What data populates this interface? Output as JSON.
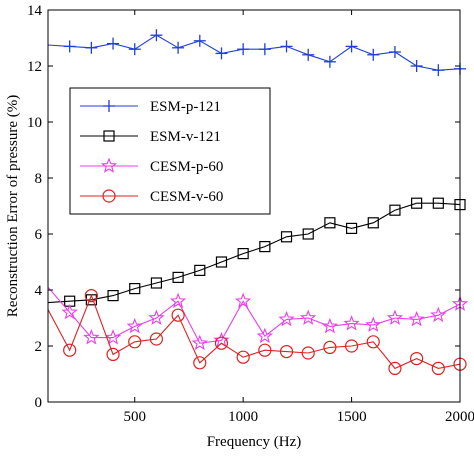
{
  "chart_data": {
    "type": "line",
    "xlabel": "Frequency (Hz)",
    "ylabel": "Reconstruction Error of pressure (%)",
    "xlim": [
      100,
      2000
    ],
    "ylim": [
      0,
      14
    ],
    "xticks": [
      500,
      1000,
      1500,
      2000
    ],
    "yticks": [
      0,
      2,
      4,
      6,
      8,
      10,
      12,
      14
    ],
    "grid": false,
    "legend_position": "middle-left",
    "x": [
      100,
      200,
      300,
      400,
      500,
      600,
      700,
      800,
      900,
      1000,
      1100,
      1200,
      1300,
      1400,
      1500,
      1600,
      1700,
      1800,
      1900,
      2000
    ],
    "series": [
      {
        "name": "ESM-p-121",
        "color": "#1f3fd6",
        "marker": "plus",
        "values": [
          12.75,
          12.7,
          12.65,
          12.8,
          12.6,
          13.1,
          12.65,
          12.9,
          12.45,
          12.6,
          12.6,
          12.7,
          12.4,
          12.15,
          12.7,
          12.4,
          12.5,
          12.0,
          11.85,
          11.9
        ]
      },
      {
        "name": "ESM-v-121",
        "color": "#000000",
        "marker": "square",
        "values": [
          3.55,
          3.6,
          3.65,
          3.8,
          4.05,
          4.25,
          4.45,
          4.7,
          5.0,
          5.3,
          5.55,
          5.9,
          6.0,
          6.4,
          6.2,
          6.4,
          6.85,
          7.1,
          7.1,
          7.05
        ]
      },
      {
        "name": "CESM-p-60",
        "color": "#e83ee8",
        "marker": "star",
        "values": [
          4.1,
          3.2,
          2.3,
          2.3,
          2.7,
          3.0,
          3.6,
          2.1,
          2.2,
          3.6,
          2.35,
          2.95,
          3.0,
          2.7,
          2.8,
          2.75,
          3.0,
          2.95,
          3.1,
          3.5
        ]
      },
      {
        "name": "CESM-v-60",
        "color": "#e02020",
        "marker": "circle",
        "values": [
          3.3,
          1.85,
          3.8,
          1.7,
          2.15,
          2.25,
          3.1,
          1.4,
          2.1,
          1.6,
          1.85,
          1.8,
          1.75,
          1.95,
          2.0,
          2.15,
          1.2,
          1.55,
          1.2,
          1.35
        ]
      }
    ]
  }
}
